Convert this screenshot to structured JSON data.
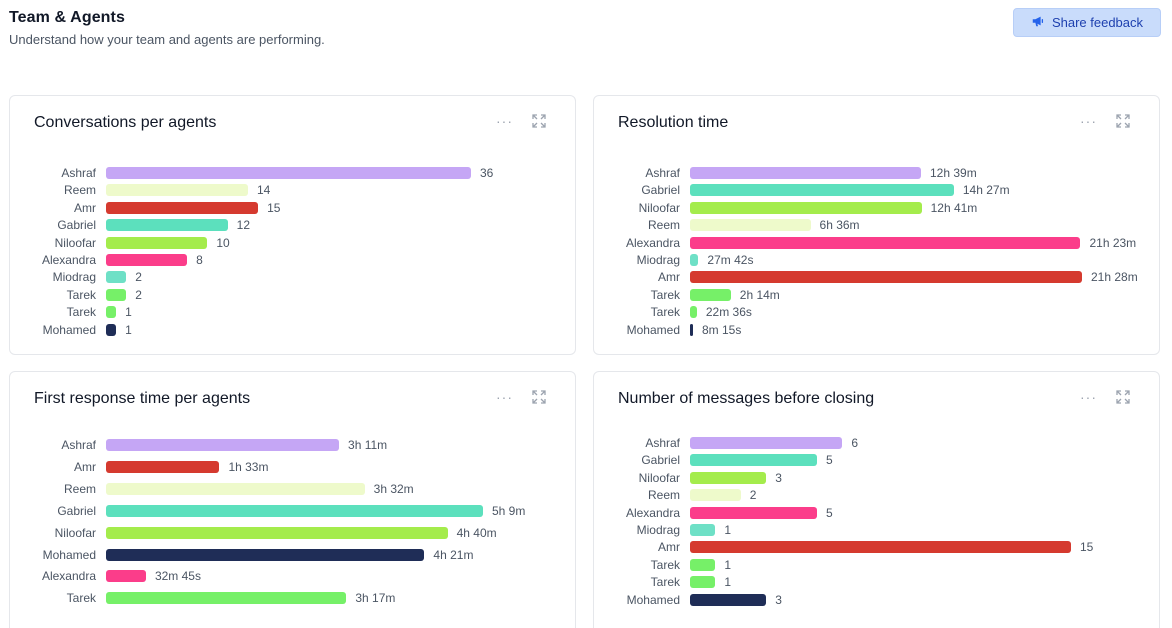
{
  "header": {
    "title": "Team & Agents",
    "subtitle": "Understand how your team and agents are performing."
  },
  "feedback": {
    "label": "Share feedback"
  },
  "colors": {
    "Ashraf": "#c5a6f5",
    "Reem": "#eefacb",
    "Amr": "#d53a2f",
    "Gabriel": "#5ce0bd",
    "Niloofar": "#a4ec4c",
    "Alexandra": "#fb3d8a",
    "Miodrag": "#6ee0c6",
    "Tarek": "#76f068",
    "Mohamed": "#1f2d57"
  },
  "cards": [
    {
      "title": "Conversations per agents",
      "chart_data": {
        "type": "bar",
        "orientation": "horizontal",
        "max": 36,
        "rows": [
          {
            "label": "Ashraf",
            "value": 36,
            "display": "36"
          },
          {
            "label": "Reem",
            "value": 14,
            "display": "14"
          },
          {
            "label": "Amr",
            "value": 15,
            "display": "15"
          },
          {
            "label": "Gabriel",
            "value": 12,
            "display": "12"
          },
          {
            "label": "Niloofar",
            "value": 10,
            "display": "10"
          },
          {
            "label": "Alexandra",
            "value": 8,
            "display": "8"
          },
          {
            "label": "Miodrag",
            "value": 2,
            "display": "2"
          },
          {
            "label": "Tarek",
            "value": 2,
            "display": "2"
          },
          {
            "label": "Tarek",
            "value": 1,
            "display": "1"
          },
          {
            "label": "Mohamed",
            "value": 1,
            "display": "1"
          }
        ]
      }
    },
    {
      "title": "Resolution time",
      "chart_data": {
        "type": "bar",
        "orientation": "horizontal",
        "max": 1288,
        "rows": [
          {
            "label": "Ashraf",
            "value": 759,
            "display": "12h 39m"
          },
          {
            "label": "Gabriel",
            "value": 867,
            "display": "14h 27m"
          },
          {
            "label": "Niloofar",
            "value": 761,
            "display": "12h 41m"
          },
          {
            "label": "Reem",
            "value": 396,
            "display": "6h 36m"
          },
          {
            "label": "Alexandra",
            "value": 1283,
            "display": "21h 23m"
          },
          {
            "label": "Miodrag",
            "value": 27.7,
            "display": "27m 42s"
          },
          {
            "label": "Amr",
            "value": 1288,
            "display": "21h 28m"
          },
          {
            "label": "Tarek",
            "value": 134,
            "display": "2h 14m"
          },
          {
            "label": "Tarek",
            "value": 22.6,
            "display": "22m 36s"
          },
          {
            "label": "Mohamed",
            "value": 8.25,
            "display": "8m 15s"
          }
        ]
      }
    },
    {
      "title": "First response time per agents",
      "chart_data": {
        "type": "bar",
        "orientation": "horizontal",
        "max": 309,
        "rows": [
          {
            "label": "Ashraf",
            "value": 191,
            "display": "3h 11m"
          },
          {
            "label": "Amr",
            "value": 93,
            "display": "1h 33m"
          },
          {
            "label": "Reem",
            "value": 212,
            "display": "3h 32m"
          },
          {
            "label": "Gabriel",
            "value": 309,
            "display": "5h 9m"
          },
          {
            "label": "Niloofar",
            "value": 280,
            "display": "4h 40m"
          },
          {
            "label": "Mohamed",
            "value": 261,
            "display": "4h 21m"
          },
          {
            "label": "Alexandra",
            "value": 32.75,
            "display": "32m 45s"
          },
          {
            "label": "Tarek",
            "value": 197,
            "display": "3h 17m"
          }
        ]
      }
    },
    {
      "title": "Number of messages before closing",
      "chart_data": {
        "type": "bar",
        "orientation": "horizontal",
        "max": 15,
        "rows": [
          {
            "label": "Ashraf",
            "value": 6,
            "display": "6"
          },
          {
            "label": "Gabriel",
            "value": 5,
            "display": "5"
          },
          {
            "label": "Niloofar",
            "value": 3,
            "display": "3"
          },
          {
            "label": "Reem",
            "value": 2,
            "display": "2"
          },
          {
            "label": "Alexandra",
            "value": 5,
            "display": "5"
          },
          {
            "label": "Miodrag",
            "value": 1,
            "display": "1"
          },
          {
            "label": "Amr",
            "value": 15,
            "display": "15"
          },
          {
            "label": "Tarek",
            "value": 1,
            "display": "1"
          },
          {
            "label": "Tarek",
            "value": 1,
            "display": "1"
          },
          {
            "label": "Mohamed",
            "value": 3,
            "display": "3"
          }
        ]
      }
    }
  ]
}
